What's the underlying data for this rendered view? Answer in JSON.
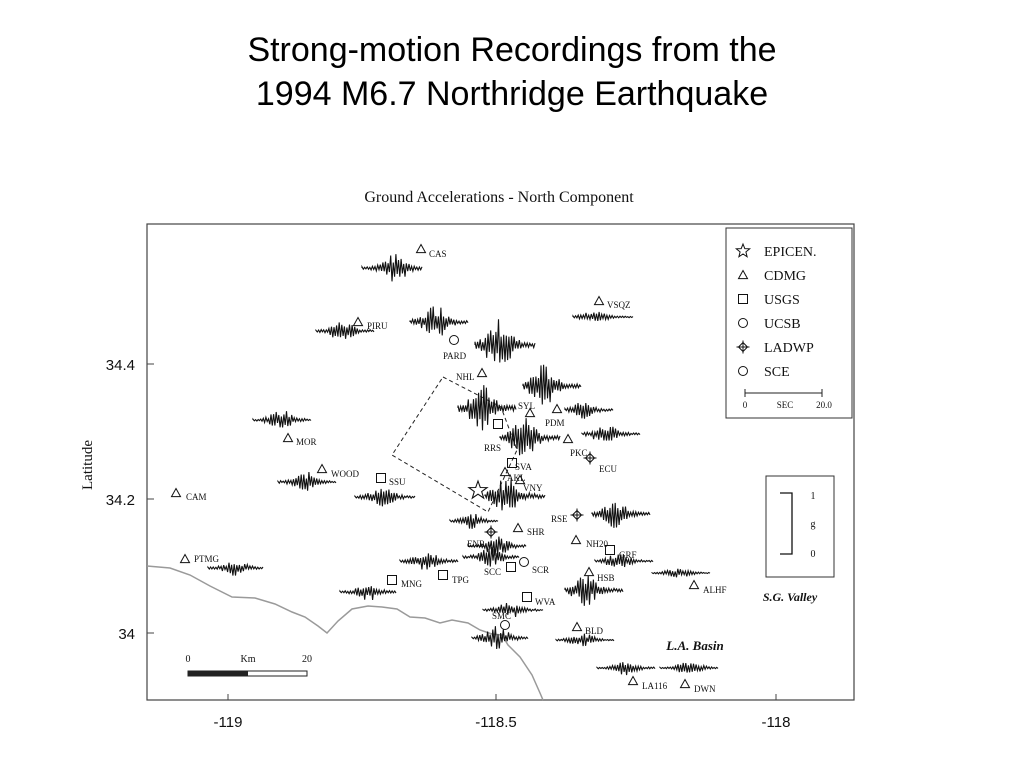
{
  "slide": {
    "title_line1": "Strong-motion Recordings from the",
    "title_line2": "1994 M6.7 Northridge Earthquake"
  },
  "figure": {
    "title": "Ground Accelerations - North Component",
    "y_axis_label": "Latitude",
    "y_ticks": [
      {
        "label": "34.4",
        "value": 34.4
      },
      {
        "label": "34.2",
        "value": 34.2
      },
      {
        "label": "34",
        "value": 34.0
      }
    ],
    "x_ticks": [
      {
        "label": "-119",
        "value": -119
      },
      {
        "label": "-118.5",
        "value": -118.5
      },
      {
        "label": "-118",
        "value": -118
      }
    ],
    "x_range": [
      -119.15,
      -117.9
    ],
    "y_range": [
      33.9,
      34.6
    ],
    "legend": {
      "items": [
        {
          "symbol": "star",
          "label": "EPICEN."
        },
        {
          "symbol": "triangle",
          "label": "CDMG"
        },
        {
          "symbol": "square",
          "label": "USGS"
        },
        {
          "symbol": "circle",
          "label": "UCSB"
        },
        {
          "symbol": "diamond-cross",
          "label": "LADWP"
        },
        {
          "symbol": "circle",
          "label": "SCE"
        }
      ],
      "time_scale": {
        "start": "0",
        "mid": "SEC",
        "end": "20.0"
      }
    },
    "amp_scale": {
      "top": "1",
      "mid": "g",
      "bottom": "0"
    },
    "region_labels": {
      "sg_valley": "S.G. Valley",
      "la_basin": "L.A. Basin"
    },
    "distance_scale": {
      "start": "0",
      "unit": "Km",
      "end": "20"
    }
  },
  "stations": [
    {
      "code": "CAS",
      "symbol": "triangle",
      "trace": true
    },
    {
      "code": "PIRU",
      "symbol": "triangle",
      "trace": true
    },
    {
      "code": "PARD",
      "symbol": "circle",
      "trace": true
    },
    {
      "code": "VSQZ",
      "symbol": "triangle",
      "trace": true
    },
    {
      "code": "NHL",
      "symbol": "triangle",
      "trace": true
    },
    {
      "code": "SYL",
      "symbol": "triangle",
      "trace": true
    },
    {
      "code": "PDM",
      "symbol": "triangle",
      "trace": true
    },
    {
      "code": "MOR",
      "symbol": "triangle",
      "trace": true
    },
    {
      "code": "RRS",
      "symbol": "square",
      "trace": true
    },
    {
      "code": "PKC",
      "symbol": "triangle",
      "trace": true
    },
    {
      "code": "ECU",
      "symbol": "diamond-cross",
      "trace": true
    },
    {
      "code": "WOOD",
      "symbol": "triangle",
      "trace": true
    },
    {
      "code": "SSU",
      "symbol": "square",
      "trace": true
    },
    {
      "code": "SVA",
      "symbol": "square",
      "trace": false
    },
    {
      "code": "AKL",
      "symbol": "triangle",
      "trace": false
    },
    {
      "code": "VNY",
      "symbol": "triangle",
      "trace": true
    },
    {
      "code": "CAM",
      "symbol": "triangle",
      "trace": false
    },
    {
      "code": "RSE",
      "symbol": "diamond-cross",
      "trace": true
    },
    {
      "code": "ENR",
      "symbol": "diamond-cross",
      "trace": true
    },
    {
      "code": "SHR",
      "symbol": "triangle",
      "trace": true
    },
    {
      "code": "NH20",
      "symbol": "triangle",
      "trace": false
    },
    {
      "code": "GRF",
      "symbol": "square",
      "trace": true
    },
    {
      "code": "PTMG",
      "symbol": "triangle",
      "trace": true
    },
    {
      "code": "SCC",
      "symbol": "square",
      "trace": false
    },
    {
      "code": "SCR",
      "symbol": "circle",
      "trace": true
    },
    {
      "code": "HSB",
      "symbol": "triangle",
      "trace": true
    },
    {
      "code": "MNG",
      "symbol": "square",
      "trace": true
    },
    {
      "code": "TPG",
      "symbol": "square",
      "trace": true
    },
    {
      "code": "ALHF",
      "symbol": "triangle",
      "trace": true
    },
    {
      "code": "WVA",
      "symbol": "square",
      "trace": true
    },
    {
      "code": "SMC",
      "symbol": "circle",
      "trace": true
    },
    {
      "code": "BLD",
      "symbol": "triangle",
      "trace": true
    },
    {
      "code": "LA116",
      "symbol": "triangle",
      "trace": true
    },
    {
      "code": "DWN",
      "symbol": "triangle",
      "trace": true
    }
  ],
  "colors": {
    "ink": "#111111",
    "coast": "#9a9a9a",
    "frame": "#444444"
  }
}
